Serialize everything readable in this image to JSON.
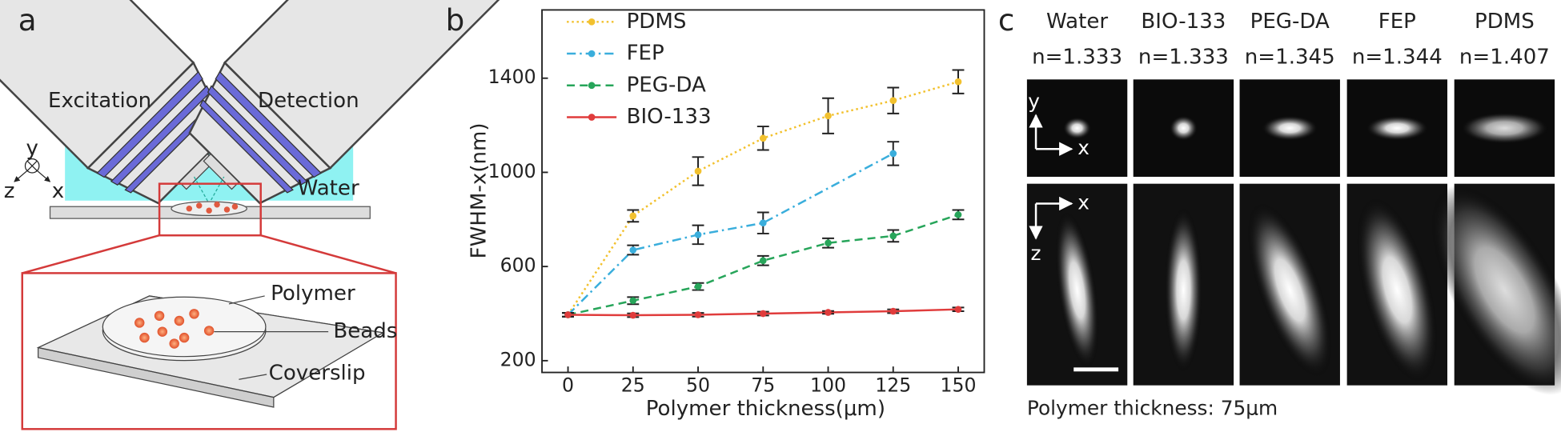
{
  "panel_a": {
    "label": "a",
    "objectives": [
      "Excitation",
      "Detection"
    ],
    "medium": "Water",
    "axes": [
      "y",
      "z",
      "x"
    ],
    "callouts": [
      "Polymer",
      "Beads",
      "Coverslip"
    ]
  },
  "chart_data": {
    "label": "b",
    "type": "line",
    "xlabel": "Polymer thickness(μm)",
    "ylabel": "FWHM-x(nm)",
    "x": [
      0,
      25,
      50,
      75,
      100,
      125,
      150
    ],
    "series": [
      {
        "name": "PDMS",
        "color": "#f2c12e",
        "dash": "dotted",
        "values": [
          395,
          815,
          1005,
          1145,
          1240,
          1305,
          1385
        ],
        "errors": [
          8,
          25,
          60,
          50,
          75,
          55,
          50
        ]
      },
      {
        "name": "FEP",
        "color": "#3aaedc",
        "dash": "dash-dot",
        "x": [
          0,
          25,
          50,
          75,
          125
        ],
        "values": [
          395,
          670,
          735,
          785,
          1080
        ],
        "errors": [
          8,
          20,
          40,
          45,
          50
        ]
      },
      {
        "name": "PEG-DA",
        "color": "#27a55a",
        "dash": "dashed",
        "values": [
          395,
          455,
          515,
          625,
          700,
          730,
          820
        ],
        "errors": [
          8,
          15,
          15,
          20,
          20,
          25,
          20
        ]
      },
      {
        "name": "BIO-133",
        "color": "#e03c3c",
        "dash": "solid",
        "values": [
          395,
          393,
          395,
          400,
          405,
          410,
          418
        ],
        "errors": [
          8,
          8,
          8,
          8,
          6,
          8,
          8
        ]
      }
    ],
    "xlim": [
      -10,
      160
    ],
    "ylim": [
      150,
      1690
    ],
    "xticks": [
      0,
      25,
      50,
      75,
      100,
      125,
      150
    ],
    "yticks": [
      200,
      600,
      1000,
      1400
    ],
    "legend": "upper left",
    "error_bar_color": "#222"
  },
  "panel_c": {
    "label": "c",
    "columns": [
      {
        "name": "Water",
        "n": "n=1.333"
      },
      {
        "name": "BIO-133",
        "n": "n=1.333"
      },
      {
        "name": "PEG-DA",
        "n": "n=1.345"
      },
      {
        "name": "FEP",
        "n": "n=1.344"
      },
      {
        "name": "PDMS",
        "n": "n=1.407"
      }
    ],
    "top_axes": [
      "y",
      "x"
    ],
    "bottom_axes": [
      "x",
      "z"
    ],
    "caption": "Polymer thickness: 75μm"
  }
}
